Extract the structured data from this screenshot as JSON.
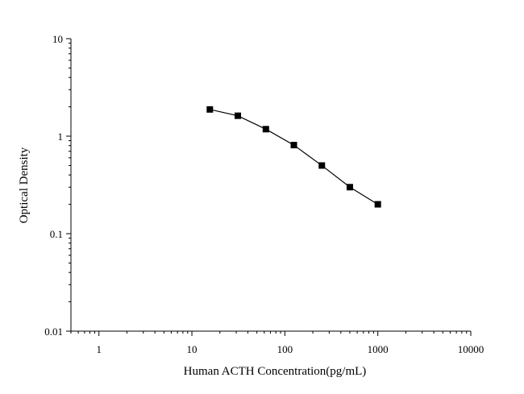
{
  "chart_data": {
    "type": "line",
    "xlabel": "Human ACTH Concentration(pg/mL)",
    "ylabel": "Optical Density",
    "xscale": "log",
    "yscale": "log",
    "xlim": [
      0.5,
      10000
    ],
    "ylim": [
      0.01,
      10
    ],
    "x_ticks": [
      1,
      10,
      100,
      1000,
      10000
    ],
    "x_tick_labels": [
      "1",
      "10",
      "100",
      "1000",
      "10000"
    ],
    "y_ticks": [
      0.01,
      0.1,
      1,
      10
    ],
    "y_tick_labels": [
      "0.01",
      "0.1",
      "1",
      "10"
    ],
    "grid": false,
    "marker": "square",
    "series": [
      {
        "x": [
          15.6,
          31.2,
          62.5,
          125,
          250,
          500,
          1000
        ],
        "y": [
          1.88,
          1.62,
          1.18,
          0.81,
          0.5,
          0.3,
          0.2
        ]
      }
    ],
    "colors": {
      "line": "#000000",
      "marker": "#000000"
    }
  }
}
